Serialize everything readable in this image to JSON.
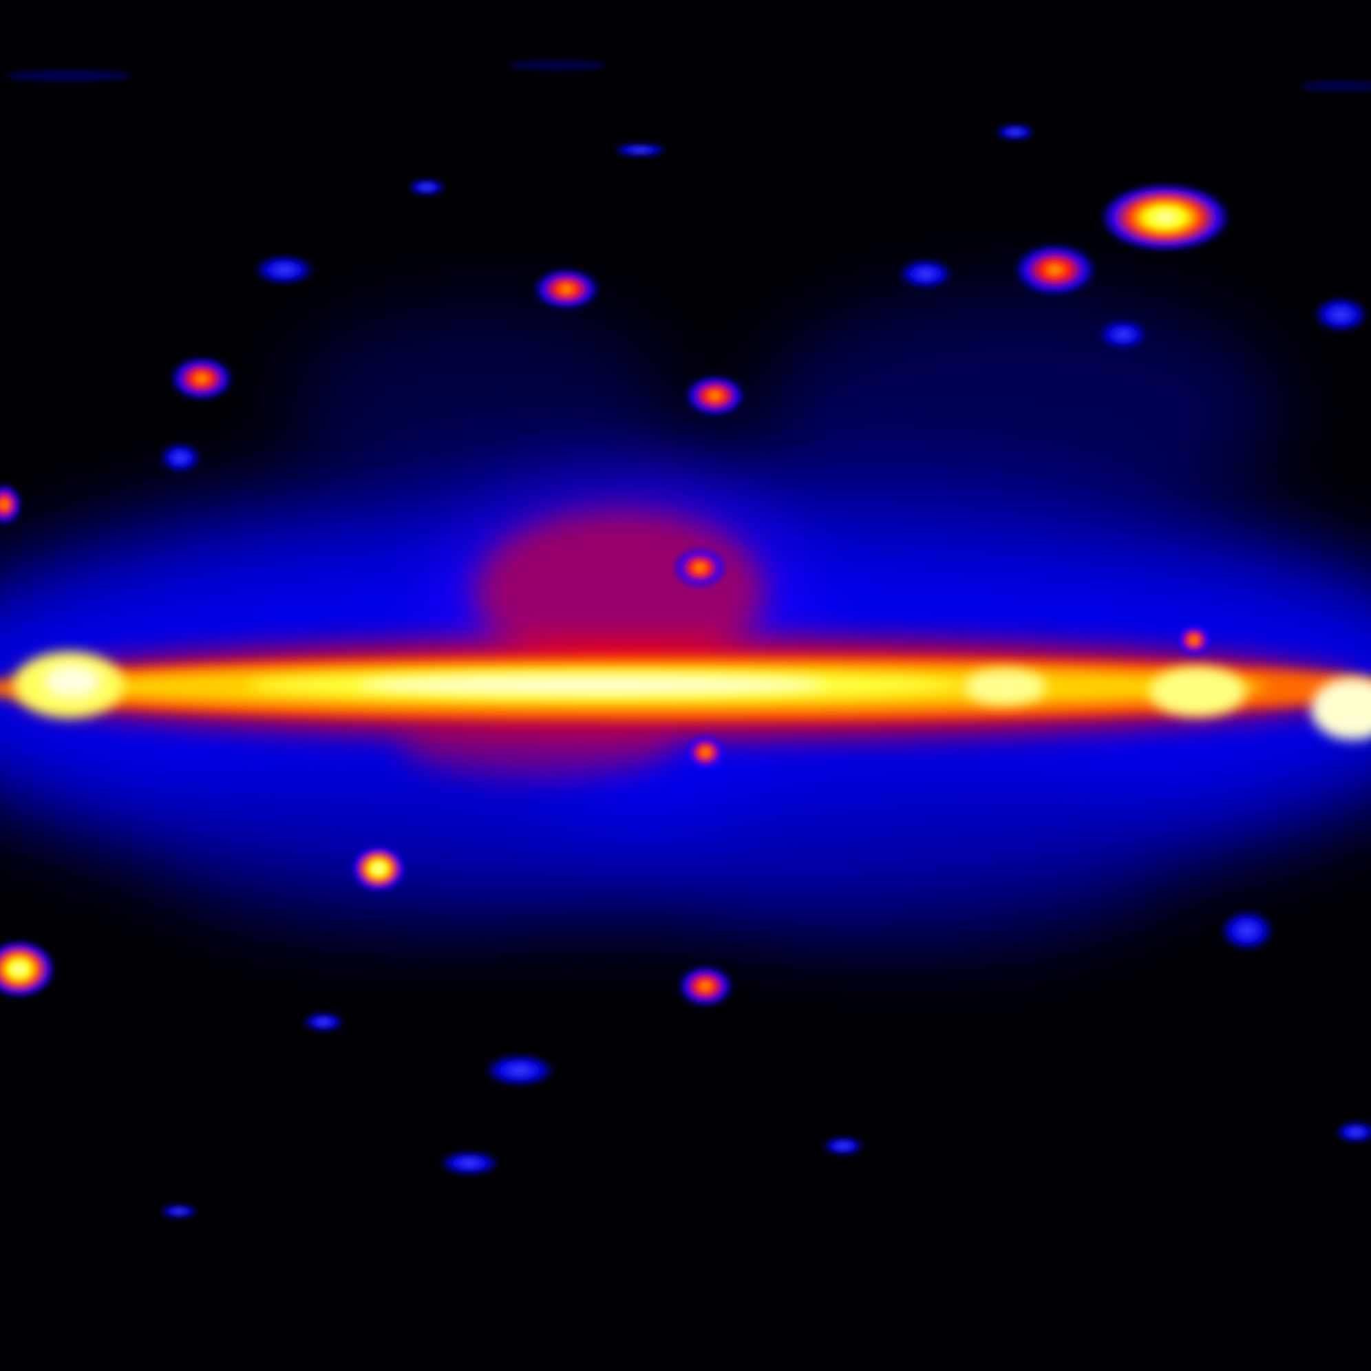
{
  "image": {
    "subject": "all-sky-gamma-ray-map",
    "colormap": [
      "#000005",
      "#0000a0",
      "#0000ff",
      "#6000d0",
      "#ff0000",
      "#ff7a00",
      "#ffff00",
      "#ffffff"
    ],
    "background_color": "#000005"
  }
}
